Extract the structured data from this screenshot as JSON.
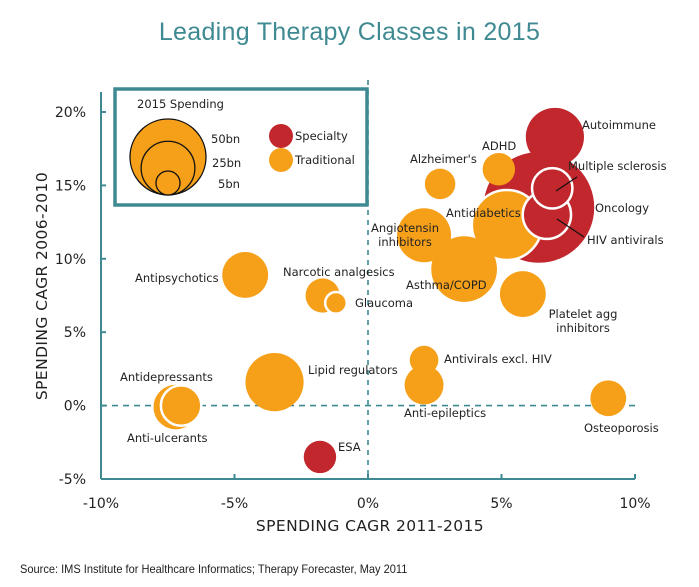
{
  "chart_data": {
    "type": "scatter",
    "subtype": "bubble",
    "title": "Leading Therapy Classes in 2015",
    "xlabel": "SPENDING CAGR 2011-2015",
    "ylabel": "SPENDING CAGR 2006-2010",
    "xlim": [
      -10,
      10
    ],
    "ylim": [
      -5,
      20
    ],
    "x_ticks": [
      -10,
      -5,
      0,
      5,
      10
    ],
    "y_ticks": [
      -5,
      0,
      5,
      10,
      15,
      20
    ],
    "x_tick_labels": [
      "-10%",
      "-5%",
      "0%",
      "5%",
      "10%"
    ],
    "y_tick_labels": [
      "-5%",
      "0%",
      "5%",
      "10%",
      "15%",
      "20%"
    ],
    "reference_lines": {
      "x": 0,
      "y": 0,
      "style": "dashed"
    },
    "grid": false,
    "size_unit": "2015 Spending (bn)",
    "legend": {
      "placement": "top-left",
      "size_title": "2015 Spending",
      "size_entries": [
        {
          "label": "50bn",
          "value": 50
        },
        {
          "label": "25bn",
          "value": 25
        },
        {
          "label": "5bn",
          "value": 5
        }
      ],
      "color_entries": [
        {
          "label": "Specialty",
          "color": "#c1272d"
        },
        {
          "label": "Traditional",
          "color": "#f6a01a"
        }
      ]
    },
    "colors": {
      "Specialty": "#c1272d",
      "Traditional": "#f6a01a",
      "axis": "#3f8a92",
      "title": "#3f8a92"
    },
    "series": [
      {
        "name": "Oncology",
        "category": "Specialty",
        "x": 6.4,
        "y": 13.5,
        "size": 105
      },
      {
        "name": "Autoimmune",
        "category": "Specialty",
        "x": 7.0,
        "y": 18.3,
        "size": 29
      },
      {
        "name": "Multiple sclerosis",
        "category": "Specialty",
        "x": 6.9,
        "y": 14.8,
        "size": 14
      },
      {
        "name": "HIV antivirals",
        "category": "Specialty",
        "x": 6.7,
        "y": 13.0,
        "size": 20
      },
      {
        "name": "ESA",
        "category": "Specialty",
        "x": -1.8,
        "y": -3.5,
        "size": 9
      },
      {
        "name": "ADHD",
        "category": "Traditional",
        "x": 4.9,
        "y": 16.1,
        "size": 9
      },
      {
        "name": "Alzheimer's",
        "category": "Traditional",
        "x": 2.7,
        "y": 15.1,
        "size": 8
      },
      {
        "name": "Antidiabetics",
        "category": "Traditional",
        "x": 5.2,
        "y": 12.3,
        "size": 42
      },
      {
        "name": "Angiotensin inhibitors",
        "category": "Traditional",
        "x": 2.1,
        "y": 11.6,
        "size": 25
      },
      {
        "name": "Asthma/COPD",
        "category": "Traditional",
        "x": 3.6,
        "y": 9.3,
        "size": 37
      },
      {
        "name": "Platelet agg inhibitors",
        "category": "Traditional",
        "x": 5.8,
        "y": 7.6,
        "size": 18
      },
      {
        "name": "Antipsychotics",
        "category": "Traditional",
        "x": -4.6,
        "y": 8.9,
        "size": 18
      },
      {
        "name": "Narcotic analgesics",
        "category": "Traditional",
        "x": -1.7,
        "y": 7.5,
        "size": 10
      },
      {
        "name": "Glaucoma",
        "category": "Traditional",
        "x": -1.2,
        "y": 7.0,
        "size": 4
      },
      {
        "name": "Lipid regulators",
        "category": "Traditional",
        "x": -3.5,
        "y": 1.6,
        "size": 29
      },
      {
        "name": "Anti-ulcerants",
        "category": "Traditional",
        "x": -7.2,
        "y": -0.1,
        "size": 17
      },
      {
        "name": "Antidepressants",
        "category": "Traditional",
        "x": -7.0,
        "y": 0.0,
        "size": 14
      },
      {
        "name": "Antivirals excl. HIV",
        "category": "Traditional",
        "x": 2.1,
        "y": 3.1,
        "size": 7
      },
      {
        "name": "Anti-epileptics",
        "category": "Traditional",
        "x": 2.1,
        "y": 1.4,
        "size": 13
      },
      {
        "name": "Osteoporosis",
        "category": "Traditional",
        "x": 9.0,
        "y": 0.5,
        "size": 11
      }
    ]
  },
  "source_note": "Source: IMS Institute for Healthcare Informatics; Therapy Forecaster, May 2011"
}
